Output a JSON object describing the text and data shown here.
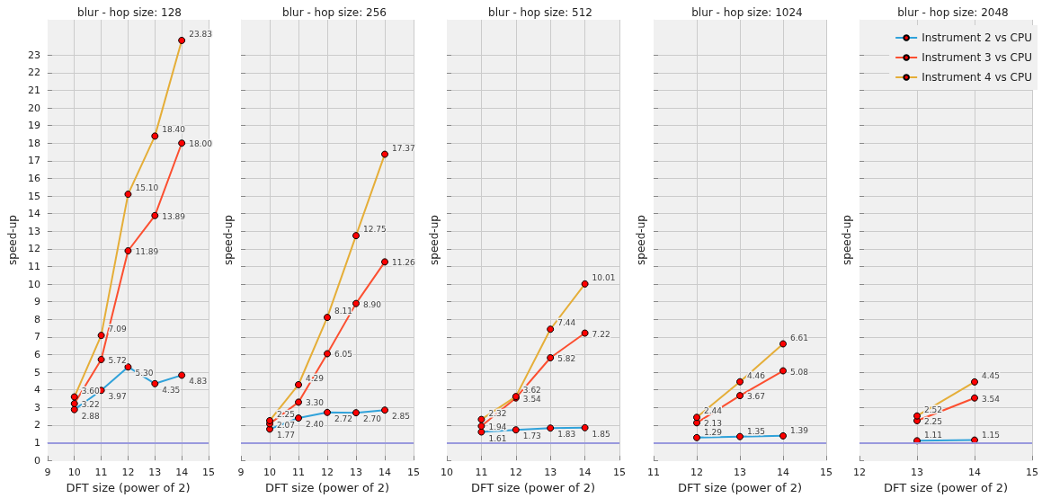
{
  "chart_data": [
    {
      "type": "line",
      "title": "blur - hop size: 128",
      "xlabel": "DFT size (power of 2)",
      "ylabel": "speed-up",
      "x": [
        10,
        11,
        12,
        13,
        14
      ],
      "xlim": [
        9,
        15
      ],
      "xticks": [
        9,
        10,
        11,
        12,
        13,
        14,
        15
      ],
      "ylim": [
        0,
        25
      ],
      "yticks": [
        0,
        1,
        2,
        3,
        4,
        5,
        6,
        7,
        8,
        9,
        10,
        11,
        12,
        13,
        14,
        15,
        16,
        17,
        18,
        19,
        20,
        21,
        22,
        23
      ],
      "grid": true,
      "marker": "circle",
      "legend": false,
      "ref_lines": [
        {
          "axis": "y",
          "value": 1,
          "color": "#9999dd"
        }
      ],
      "series": [
        {
          "color": "#30a2da",
          "values": [
            2.88,
            3.97,
            5.3,
            4.35,
            4.83
          ],
          "value_labels": [
            "2.88",
            "3.97",
            "5.30",
            "4.35",
            "4.83"
          ]
        },
        {
          "color": "#fc4f30",
          "values": [
            3.22,
            5.72,
            11.89,
            13.89,
            18
          ],
          "value_labels": [
            "3.22",
            "5.72",
            "11.89",
            "13.89",
            "18.00"
          ]
        },
        {
          "color": "#e5ae38",
          "values": [
            3.6,
            7.09,
            15.1,
            18.4,
            23.83
          ],
          "value_labels": [
            "3.60",
            "7.09",
            "15.10",
            "18.40",
            "23.83"
          ]
        }
      ]
    },
    {
      "type": "line",
      "title": "blur - hop size: 256",
      "xlabel": "DFT size (power of 2)",
      "ylabel": "speed-up",
      "x": [
        10,
        11,
        12,
        13,
        14
      ],
      "xlim": [
        9,
        15
      ],
      "xticks": [
        9,
        10,
        11,
        12,
        13,
        14,
        15
      ],
      "ylim": [
        0,
        25
      ],
      "yticks": [
        0,
        1,
        2,
        3,
        4,
        5,
        6,
        7,
        8,
        9,
        10,
        11,
        12,
        13,
        14,
        15,
        16,
        17,
        18,
        19,
        20,
        21,
        22,
        23
      ],
      "tick_labels": "x",
      "grid": true,
      "marker": "circle",
      "legend": false,
      "ref_lines": [
        {
          "axis": "y",
          "value": 1,
          "color": "#9999dd"
        }
      ],
      "series": [
        {
          "color": "#30a2da",
          "values": [
            1.77,
            2.4,
            2.72,
            2.7,
            2.85
          ],
          "value_labels": [
            "1.77",
            "2.40",
            "2.72",
            "2.70",
            "2.85"
          ]
        },
        {
          "color": "#fc4f30",
          "values": [
            2.07,
            3.3,
            6.05,
            8.9,
            11.26
          ],
          "value_labels": [
            "2.07",
            "3.30",
            "6.05",
            "8.90",
            "11.26"
          ]
        },
        {
          "color": "#e5ae38",
          "values": [
            2.25,
            4.29,
            8.11,
            12.75,
            17.37
          ],
          "value_labels": [
            "2.25",
            "4.29",
            "8.11",
            "12.75",
            "17.37"
          ]
        }
      ]
    },
    {
      "type": "line",
      "title": "blur - hop size: 512",
      "xlabel": "DFT size (power of 2)",
      "ylabel": "speed-up",
      "x": [
        11,
        12,
        13,
        14
      ],
      "xlim": [
        10,
        15
      ],
      "xticks": [
        10,
        11,
        12,
        13,
        14,
        15
      ],
      "ylim": [
        0,
        25
      ],
      "yticks": [
        0,
        1,
        2,
        3,
        4,
        5,
        6,
        7,
        8,
        9,
        10,
        11,
        12,
        13,
        14,
        15,
        16,
        17,
        18,
        19,
        20,
        21,
        22,
        23
      ],
      "tick_labels": "x",
      "grid": true,
      "marker": "circle",
      "legend": false,
      "ref_lines": [
        {
          "axis": "y",
          "value": 1,
          "color": "#9999dd"
        }
      ],
      "series": [
        {
          "color": "#30a2da",
          "values": [
            1.61,
            1.73,
            1.83,
            1.85
          ],
          "value_labels": [
            "1.61",
            "1.73",
            "1.83",
            "1.85"
          ]
        },
        {
          "color": "#fc4f30",
          "values": [
            1.94,
            3.54,
            5.82,
            7.22
          ],
          "value_labels": [
            "1.94",
            "3.54",
            "5.82",
            "7.22"
          ]
        },
        {
          "color": "#e5ae38",
          "values": [
            2.32,
            3.62,
            7.44,
            10.01
          ],
          "value_labels": [
            "2.32",
            "3.62",
            "7.44",
            "10.01"
          ]
        }
      ]
    },
    {
      "type": "line",
      "title": "blur - hop size: 1024",
      "xlabel": "DFT size (power of 2)",
      "ylabel": "speed-up",
      "x": [
        12,
        13,
        14
      ],
      "xlim": [
        11,
        15
      ],
      "xticks": [
        11,
        12,
        13,
        14,
        15
      ],
      "ylim": [
        0,
        25
      ],
      "yticks": [
        0,
        1,
        2,
        3,
        4,
        5,
        6,
        7,
        8,
        9,
        10,
        11,
        12,
        13,
        14,
        15,
        16,
        17,
        18,
        19,
        20,
        21,
        22,
        23
      ],
      "tick_labels": "x",
      "grid": true,
      "marker": "circle",
      "legend": false,
      "ref_lines": [
        {
          "axis": "y",
          "value": 1,
          "color": "#9999dd"
        }
      ],
      "series": [
        {
          "color": "#30a2da",
          "values": [
            1.29,
            1.35,
            1.39
          ],
          "value_labels": [
            "1.29",
            "1.35",
            "1.39"
          ]
        },
        {
          "color": "#fc4f30",
          "values": [
            2.13,
            3.67,
            5.08
          ],
          "value_labels": [
            "2.13",
            "3.67",
            "5.08"
          ]
        },
        {
          "color": "#e5ae38",
          "values": [
            2.44,
            4.46,
            6.61
          ],
          "value_labels": [
            "2.44",
            "4.46",
            "6.61"
          ]
        }
      ]
    },
    {
      "type": "line",
      "title": "blur - hop size: 2048",
      "xlabel": "DFT size (power of 2)",
      "ylabel": "speed-up",
      "x": [
        13,
        14
      ],
      "xlim": [
        12,
        15
      ],
      "xticks": [
        12,
        13,
        14,
        15
      ],
      "ylim": [
        0,
        25
      ],
      "yticks": [
        0,
        1,
        2,
        3,
        4,
        5,
        6,
        7,
        8,
        9,
        10,
        11,
        12,
        13,
        14,
        15,
        16,
        17,
        18,
        19,
        20,
        21,
        22,
        23
      ],
      "tick_labels": "x",
      "grid": true,
      "marker": "circle",
      "legend": "top right",
      "ref_lines": [
        {
          "axis": "y",
          "value": 1,
          "color": "#9999dd"
        }
      ],
      "series": [
        {
          "name": "Instrument 2 vs CPU",
          "color": "#30a2da",
          "values": [
            1.11,
            1.15
          ],
          "value_labels": [
            "1.11",
            "1.15"
          ]
        },
        {
          "name": "Instrument 3 vs CPU",
          "color": "#fc4f30",
          "values": [
            2.25,
            3.54
          ],
          "value_labels": [
            "2.25",
            "3.54"
          ]
        },
        {
          "name": "Instrument 4 vs CPU",
          "color": "#e5ae38",
          "values": [
            2.52,
            4.45
          ],
          "value_labels": [
            "2.52",
            "4.45"
          ]
        }
      ]
    }
  ]
}
